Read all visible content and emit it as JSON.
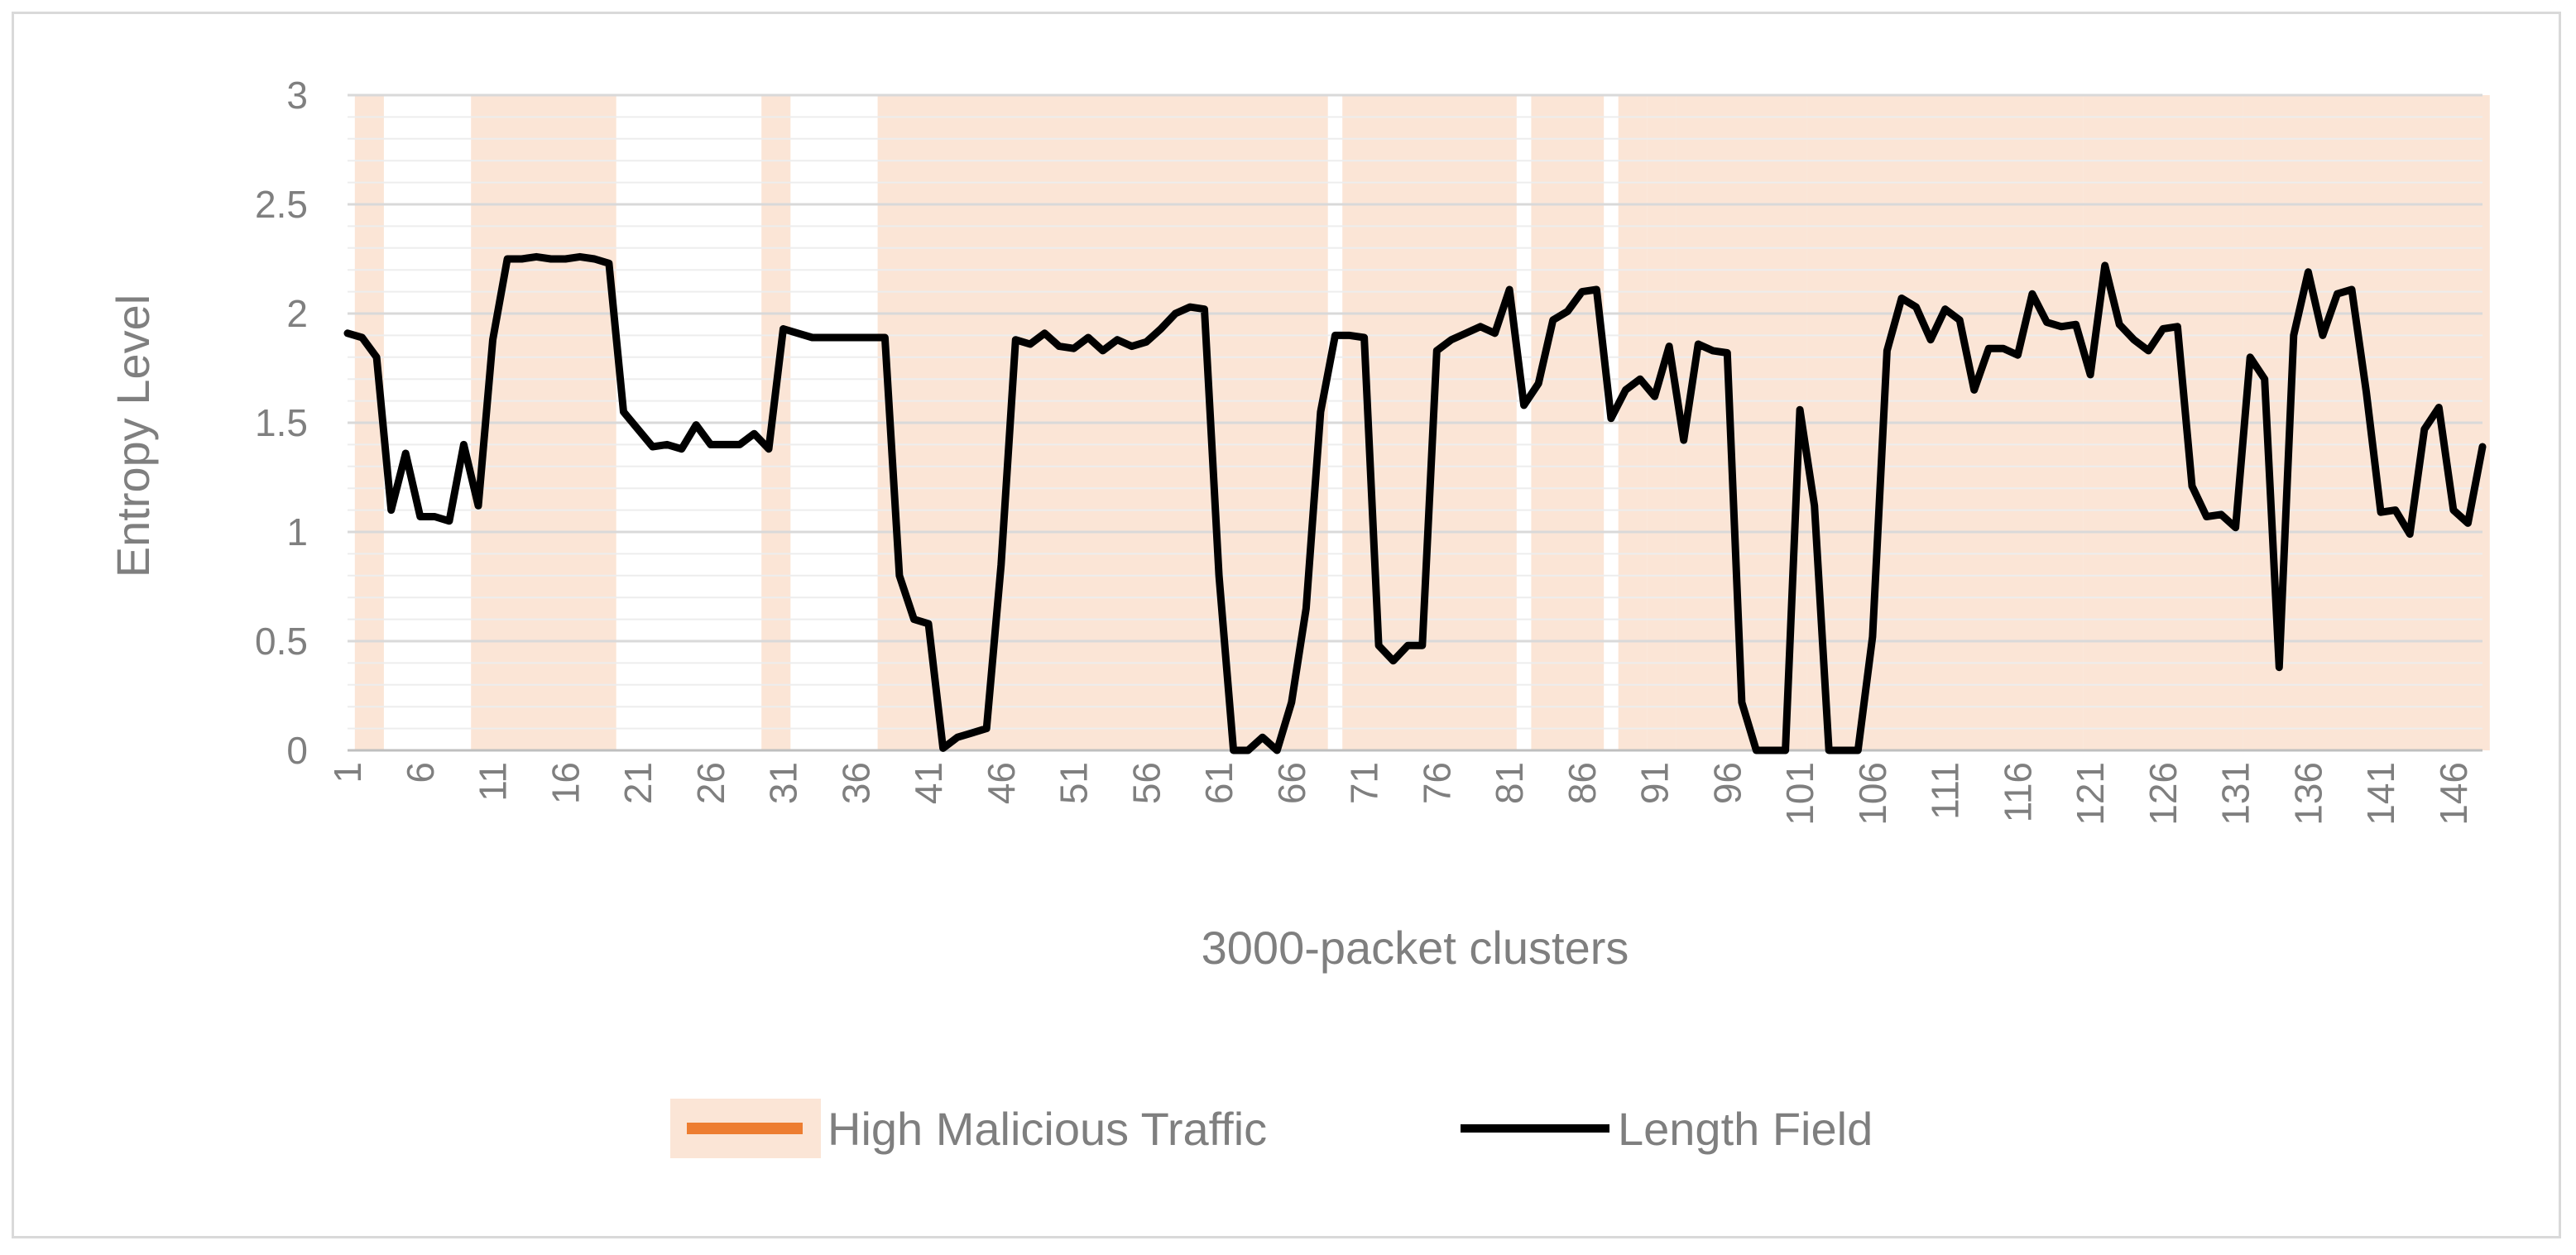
{
  "chart_data": {
    "type": "line",
    "xlabel": "3000-packet clusters",
    "ylabel": "Entropy Level",
    "ylim": [
      0,
      3
    ],
    "yticks": [
      "0",
      "0.5",
      "1",
      "1.5",
      "2",
      "2.5",
      "3"
    ],
    "x_start": 1,
    "x_end": 148,
    "x_tick_step": 5,
    "grid": "horizontal",
    "legend_position": "bottom",
    "colors": {
      "line": "#000000",
      "highlight": "#fbe5d6",
      "highlight_legend": "#ed7d31",
      "grid": "#d9d9d9",
      "axis": "#bfbfbf",
      "text": "#7f7f7f"
    },
    "highlight_series": {
      "name": "High Malicious Traffic",
      "ranges": [
        [
          2,
          3
        ],
        [
          10,
          19
        ],
        [
          30,
          31
        ],
        [
          38,
          68
        ],
        [
          70,
          81
        ],
        [
          83,
          87
        ],
        [
          89,
          90
        ],
        [
          91,
          92
        ],
        [
          93,
          101
        ],
        [
          102,
          114
        ],
        [
          115,
          120
        ],
        [
          121,
          131
        ],
        [
          132,
          148
        ]
      ]
    },
    "series": [
      {
        "name": "Length Field",
        "values": [
          1.91,
          1.89,
          1.8,
          1.1,
          1.36,
          1.07,
          1.07,
          1.05,
          1.4,
          1.12,
          1.88,
          2.25,
          2.25,
          2.26,
          2.25,
          2.25,
          2.26,
          2.25,
          2.23,
          1.55,
          1.47,
          1.39,
          1.4,
          1.38,
          1.49,
          1.4,
          1.4,
          1.4,
          1.45,
          1.38,
          1.93,
          1.91,
          1.89,
          1.89,
          1.89,
          1.89,
          1.89,
          1.89,
          0.8,
          0.6,
          0.58,
          0.01,
          0.06,
          0.08,
          0.1,
          0.85,
          1.88,
          1.86,
          1.91,
          1.85,
          1.84,
          1.89,
          1.83,
          1.88,
          1.85,
          1.87,
          1.93,
          2.0,
          2.03,
          2.02,
          0.8,
          0.0,
          0.0,
          0.06,
          0.0,
          0.22,
          0.65,
          1.55,
          1.9,
          1.9,
          1.89,
          0.48,
          0.41,
          0.48,
          0.48,
          1.83,
          1.88,
          1.91,
          1.94,
          1.91,
          2.11,
          1.58,
          1.68,
          1.97,
          2.01,
          2.1,
          2.11,
          1.52,
          1.65,
          1.7,
          1.62,
          1.85,
          1.42,
          1.86,
          1.83,
          1.82,
          0.22,
          0.0,
          0.0,
          0.0,
          1.56,
          1.12,
          0.0,
          0.0,
          0.0,
          0.52,
          1.83,
          2.07,
          2.03,
          1.88,
          2.02,
          1.97,
          1.65,
          1.84,
          1.84,
          1.81,
          2.09,
          1.96,
          1.94,
          1.95,
          1.72,
          2.22,
          1.95,
          1.88,
          1.83,
          1.93,
          1.94,
          1.21,
          1.07,
          1.08,
          1.02,
          1.8,
          1.7,
          0.38,
          1.9,
          2.19,
          1.9,
          2.09,
          2.11,
          1.64,
          1.09,
          1.1,
          0.99,
          1.47,
          1.57,
          1.1,
          1.04,
          1.39
        ]
      }
    ]
  }
}
